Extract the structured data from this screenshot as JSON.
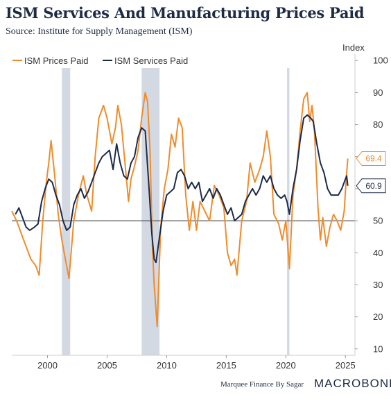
{
  "title": "ISM Services And Manufacturing Prices Paid",
  "subtitle": "Source: Institute for Supply Management (ISM)",
  "footer_credit": "Marquee Finance By Sagar",
  "brand": "MACROBOND",
  "colors": {
    "prices_paid": "#f08c2a",
    "services_paid": "#1b2a4a",
    "recession": "#d3d9e3",
    "baseline": "#333333",
    "axis": "#cccccc"
  },
  "chart_data": {
    "type": "line",
    "title": "ISM Services And Manufacturing Prices Paid",
    "ylabel": "Index",
    "xlim": [
      1997,
      2025.8
    ],
    "ylim": [
      8,
      102
    ],
    "y_ticks": [
      10,
      20,
      30,
      40,
      50,
      60,
      70,
      80,
      90,
      100
    ],
    "x_ticks": [
      2000,
      2005,
      2010,
      2015,
      2020,
      2025
    ],
    "y_axis_side": "right",
    "grid": false,
    "legend": "top-left",
    "reference_line": 50,
    "recession_bands": [
      [
        2001.2,
        2001.9
      ],
      [
        2007.9,
        2009.4
      ],
      [
        2020.1,
        2020.3
      ]
    ],
    "last_value_tags": [
      {
        "series": "ISM Prices Paid",
        "value": 69.4,
        "label": "69.4"
      },
      {
        "series": "ISM Services Paid",
        "value": 60.9,
        "label": "60.9"
      }
    ],
    "series": [
      {
        "name": "ISM Prices Paid",
        "color": "#f08c2a",
        "x": [
          1997.0,
          1997.4,
          1997.8,
          1998.2,
          1998.6,
          1999.0,
          1999.3,
          1999.6,
          1999.9,
          2000.1,
          2000.3,
          2000.6,
          2000.9,
          2001.2,
          2001.5,
          2001.8,
          2002.2,
          2002.6,
          2003.0,
          2003.3,
          2003.7,
          2004.0,
          2004.3,
          2004.7,
          2005.0,
          2005.4,
          2005.7,
          2005.9,
          2006.2,
          2006.5,
          2006.8,
          2007.0,
          2007.3,
          2007.6,
          2007.9,
          2008.2,
          2008.4,
          2008.6,
          2008.8,
          2008.95,
          2009.2,
          2009.5,
          2009.8,
          2010.1,
          2010.4,
          2010.7,
          2011.0,
          2011.3,
          2011.6,
          2011.9,
          2012.2,
          2012.5,
          2012.8,
          2013.2,
          2013.6,
          2014.0,
          2014.4,
          2014.8,
          2015.1,
          2015.4,
          2015.7,
          2015.9,
          2016.3,
          2016.7,
          2017.0,
          2017.4,
          2017.8,
          2018.1,
          2018.4,
          2018.7,
          2019.0,
          2019.4,
          2019.7,
          2020.0,
          2020.3,
          2020.6,
          2020.9,
          2021.2,
          2021.5,
          2021.8,
          2022.0,
          2022.2,
          2022.4,
          2022.7,
          2022.9,
          2023.1,
          2023.4,
          2023.7,
          2024.0,
          2024.3,
          2024.6,
          2024.9,
          2025.1,
          2025.2
        ],
        "values": [
          53,
          50,
          46,
          42,
          38,
          36,
          33,
          50,
          62,
          68,
          75,
          64,
          52,
          44,
          38,
          32,
          50,
          58,
          64,
          58,
          53,
          70,
          82,
          86,
          82,
          74,
          79,
          86,
          80,
          68,
          56,
          63,
          67,
          72,
          82,
          90,
          87,
          72,
          42,
          30,
          17,
          48,
          60,
          66,
          77,
          73,
          82,
          79,
          58,
          47,
          56,
          47,
          56,
          53,
          50,
          61,
          58,
          54,
          40,
          36,
          38,
          33,
          50,
          56,
          68,
          62,
          66,
          70,
          78,
          70,
          52,
          49,
          44,
          50,
          35,
          58,
          66,
          78,
          88,
          90,
          81,
          86,
          78,
          54,
          44,
          51,
          42,
          48,
          52,
          50,
          47,
          53,
          65,
          69.4
        ]
      },
      {
        "name": "ISM Services Paid",
        "color": "#1b2a4a",
        "x": [
          1997.3,
          1997.6,
          1997.9,
          1998.2,
          1998.5,
          1998.9,
          1999.2,
          1999.5,
          1999.8,
          2000.1,
          2000.4,
          2000.7,
          2001.0,
          2001.3,
          2001.6,
          2001.9,
          2002.2,
          2002.5,
          2002.8,
          2003.1,
          2003.4,
          2003.7,
          2004.0,
          2004.3,
          2004.6,
          2004.9,
          2005.2,
          2005.5,
          2005.8,
          2006.1,
          2006.4,
          2006.7,
          2007.0,
          2007.3,
          2007.6,
          2007.9,
          2008.2,
          2008.5,
          2008.75,
          2008.95,
          2009.1,
          2009.4,
          2009.7,
          2010.0,
          2010.3,
          2010.6,
          2010.9,
          2011.2,
          2011.5,
          2011.8,
          2012.1,
          2012.4,
          2012.7,
          2013.0,
          2013.3,
          2013.6,
          2013.9,
          2014.2,
          2014.5,
          2014.8,
          2015.1,
          2015.4,
          2015.7,
          2016.0,
          2016.3,
          2016.6,
          2016.9,
          2017.2,
          2017.5,
          2017.8,
          2018.1,
          2018.4,
          2018.7,
          2019.0,
          2019.3,
          2019.6,
          2019.9,
          2020.1,
          2020.3,
          2020.6,
          2020.9,
          2021.2,
          2021.5,
          2021.8,
          2022.1,
          2022.3,
          2022.6,
          2022.9,
          2023.2,
          2023.5,
          2023.8,
          2024.1,
          2024.4,
          2024.7,
          2024.9,
          2025.1,
          2025.2
        ],
        "values": [
          52,
          54,
          51,
          48,
          47,
          48,
          49,
          56,
          60,
          63,
          62,
          58,
          55,
          50,
          47,
          48,
          55,
          58,
          60,
          57,
          59,
          62,
          65,
          68,
          70,
          71,
          72,
          66,
          74,
          68,
          64,
          63,
          68,
          70,
          76,
          79,
          78,
          61,
          46,
          38,
          37,
          45,
          53,
          58,
          59,
          60,
          65,
          66,
          64,
          60,
          62,
          60,
          62,
          56,
          58,
          60,
          57,
          60,
          58,
          55,
          52,
          54,
          50,
          51,
          52,
          56,
          58,
          60,
          58,
          60,
          64,
          62,
          64,
          60,
          58,
          57,
          58,
          56,
          52,
          60,
          66,
          75,
          82,
          83,
          82,
          81,
          74,
          68,
          65,
          60,
          58,
          58,
          58,
          60,
          62,
          64,
          60.9
        ]
      }
    ]
  }
}
